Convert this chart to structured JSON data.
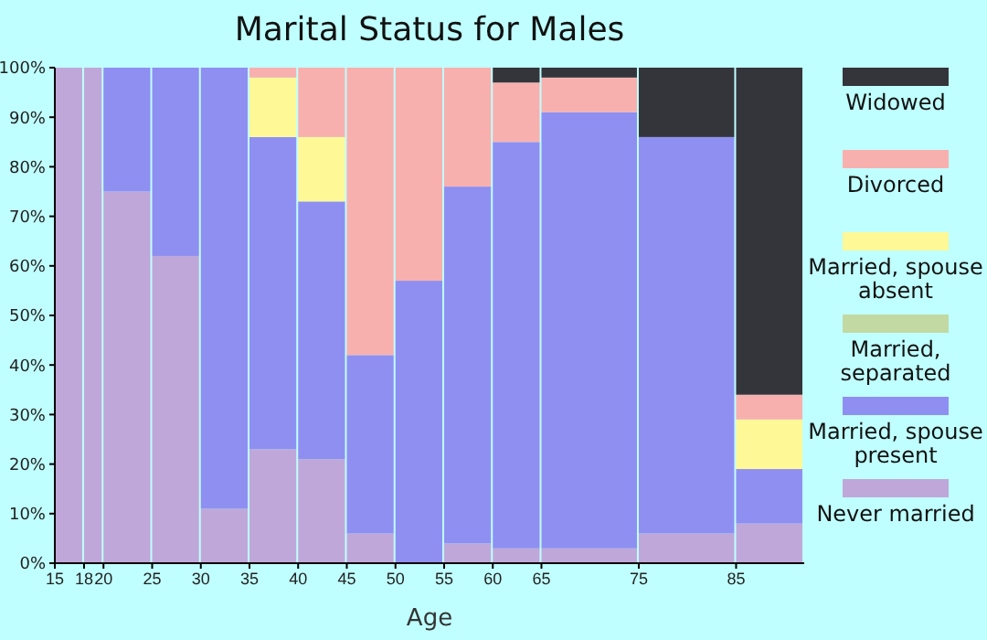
{
  "chart_data": {
    "type": "bar",
    "title": "Marital Status for Males",
    "xlabel": "Age",
    "stacked": true,
    "legend": "right",
    "x": [
      16.5,
      19,
      22.5,
      27.5,
      32.5,
      37.5,
      42.5,
      47.5,
      52.5,
      57.5,
      62.5,
      70,
      80,
      88.5
    ],
    "xlim": [
      15,
      92
    ],
    "xticks": [
      15,
      18,
      20,
      25,
      30,
      35,
      40,
      45,
      50,
      55,
      60,
      65,
      75,
      85
    ],
    "ylim": [
      0,
      100
    ],
    "yticks": [
      {
        "value": 0,
        "label": "0%"
      },
      {
        "value": 10,
        "label": "10%"
      },
      {
        "value": 20,
        "label": "20%"
      },
      {
        "value": 30,
        "label": "30%"
      },
      {
        "value": 40,
        "label": "40%"
      },
      {
        "value": 50,
        "label": "50%"
      },
      {
        "value": 60,
        "label": "60%"
      },
      {
        "value": 70,
        "label": "70%"
      },
      {
        "value": 80,
        "label": "80%"
      },
      {
        "value": 90,
        "label": "90%"
      },
      {
        "value": 100,
        "label": "100%"
      }
    ],
    "series": [
      {
        "name": "Never married",
        "color": "#bfa8d9",
        "values": [
          100,
          100,
          75,
          62,
          11,
          23,
          21,
          6,
          0,
          4,
          3,
          3,
          6,
          8
        ]
      },
      {
        "name": "Married, spouse present",
        "color": "#8f8ff2",
        "values": [
          0,
          0,
          25,
          38,
          89,
          63,
          52,
          36,
          57,
          72,
          82,
          88,
          80,
          11
        ]
      },
      {
        "name": "Married, separated",
        "color": "#c2d9a3",
        "values": [
          0,
          0,
          0,
          0,
          0,
          0,
          0,
          0,
          0,
          0,
          0,
          0,
          0,
          0
        ]
      },
      {
        "name": "Married, spouse absent",
        "color": "#fff897",
        "values": [
          0,
          0,
          0,
          0,
          0,
          12,
          13,
          0,
          0,
          0,
          0,
          0,
          0,
          10
        ]
      },
      {
        "name": "Divorced",
        "color": "#f8b0ae",
        "values": [
          0,
          0,
          0,
          0,
          0,
          2,
          14,
          58,
          43,
          24,
          12,
          7,
          0,
          5
        ]
      },
      {
        "name": "Widowed",
        "color": "#34353b",
        "values": [
          0,
          0,
          0,
          0,
          0,
          0,
          0,
          0,
          0,
          0,
          3,
          2,
          14,
          66
        ]
      }
    ]
  }
}
